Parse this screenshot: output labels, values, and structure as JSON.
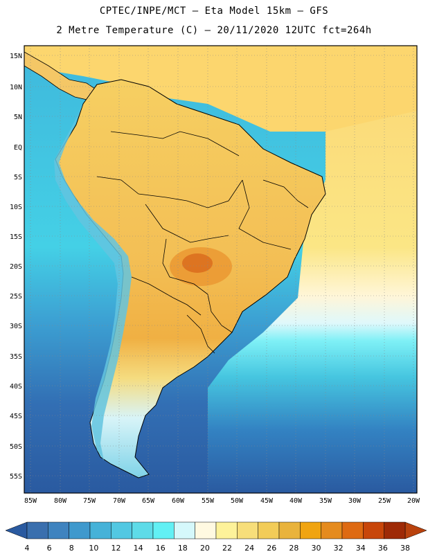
{
  "title": {
    "line1": "CPTEC/INPE/MCT –  Eta Model 15km – GFS",
    "line2": "2 Metre Temperature (C) – 20/11/2020 12UTC fct=264h"
  },
  "map": {
    "lat_labels": [
      "15N",
      "10N",
      "5N",
      "EQ",
      "5S",
      "10S",
      "15S",
      "20S",
      "25S",
      "30S",
      "35S",
      "40S",
      "45S",
      "50S",
      "55S"
    ],
    "lon_labels": [
      "85W",
      "80W",
      "75W",
      "70W",
      "65W",
      "60W",
      "55W",
      "50W",
      "45W",
      "40W",
      "35W",
      "30W",
      "25W",
      "20W"
    ],
    "colors": {
      "ocean_south": "#2a64aa",
      "ocean_mid": "#3a86c8",
      "ocean_cyan": "#44d0e6",
      "ocean_light": "#7ef0f6",
      "atlantic_warm": "#fbe685",
      "land_orange": "#f3bf55",
      "land_hot": "#e07a2a"
    }
  },
  "colorbar": {
    "labels": [
      "4",
      "6",
      "8",
      "10",
      "12",
      "14",
      "16",
      "18",
      "20",
      "22",
      "24",
      "26",
      "28",
      "30",
      "32",
      "34",
      "36",
      "38"
    ],
    "colors": [
      "#3a6fae",
      "#3f83bf",
      "#3f99cd",
      "#46b2d8",
      "#52c8e2",
      "#5edbe8",
      "#62f0f4",
      "#d5f8fb",
      "#fff9e1",
      "#fdf29a",
      "#f7de7a",
      "#f2cc58",
      "#e9b33c",
      "#f0a411",
      "#e58b1e",
      "#de6a12",
      "#c8460a",
      "#9e2a06"
    ],
    "under_color": "#2a5aa0",
    "over_color": "#b9420d"
  }
}
